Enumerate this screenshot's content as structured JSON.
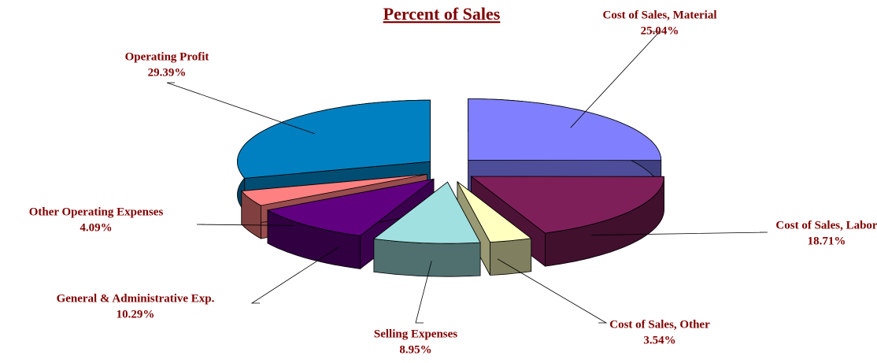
{
  "chart_data": {
    "type": "pie3d",
    "title": "Percent of Sales",
    "categories": [
      "Cost of Sales, Material",
      "Cost of Sales, Labor",
      "Cost of Sales, Other",
      "Selling Expenses",
      "General & Administrative Exp.",
      "Other Operating Expenses",
      "Operating Profit"
    ],
    "values": [
      25.04,
      18.71,
      3.54,
      8.95,
      10.29,
      4.09,
      29.39
    ],
    "value_labels": [
      "25.04%",
      "18.71%",
      "3.54%",
      "8.95%",
      "10.29%",
      "4.09%",
      "29.39%"
    ],
    "colors": [
      "#8080ff",
      "#7f1f5a",
      "#ffffc0",
      "#a0e0e0",
      "#600080",
      "#ff8080",
      "#0080c0"
    ]
  }
}
